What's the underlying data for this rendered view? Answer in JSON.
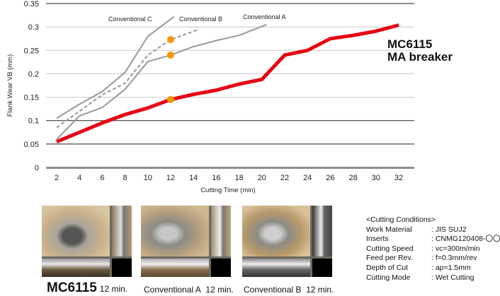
{
  "chart_data": {
    "type": "line",
    "xlabel": "Cutting Time (min)",
    "ylabel": "Flank Wear VB (mm)",
    "xlim": [
      2,
      32
    ],
    "ylim": [
      0,
      0.35
    ],
    "x_ticks": [
      2,
      4,
      6,
      8,
      10,
      12,
      14,
      16,
      18,
      20,
      22,
      24,
      26,
      28,
      30,
      32
    ],
    "y_ticks": [
      "0",
      "0.05",
      "0.1",
      "0.15",
      "0.2",
      "0.25",
      "0.3",
      "0.35"
    ],
    "grid": true,
    "series": [
      {
        "name": "MC6115 MA breaker",
        "label_lines": [
          "MC6115",
          "MA breaker"
        ],
        "color": "#e60012",
        "style": "solid-thick",
        "x": [
          2,
          4,
          6,
          8,
          10,
          12,
          14,
          16,
          18,
          20,
          22,
          24,
          26,
          28,
          30,
          32
        ],
        "y": [
          0.055,
          0.075,
          0.095,
          0.113,
          0.127,
          0.145,
          0.156,
          0.165,
          0.178,
          0.188,
          0.24,
          0.25,
          0.275,
          0.282,
          0.291,
          0.304
        ]
      },
      {
        "name": "Conventional A",
        "color": "#999999",
        "style": "solid",
        "x": [
          2,
          4,
          6,
          8,
          10,
          12,
          14,
          16,
          18,
          20.4
        ],
        "y": [
          0.06,
          0.11,
          0.128,
          0.167,
          0.226,
          0.24,
          0.258,
          0.271,
          0.282,
          0.305
        ]
      },
      {
        "name": "Conventional B",
        "color": "#999999",
        "style": "dashed",
        "x": [
          2,
          4,
          6,
          8,
          10,
          12,
          14.5
        ],
        "y": [
          0.085,
          0.12,
          0.155,
          0.18,
          0.24,
          0.273,
          0.295
        ]
      },
      {
        "name": "Conventional C",
        "color": "#999999",
        "style": "solid",
        "x": [
          2,
          4,
          6,
          8,
          10,
          12.3
        ],
        "y": [
          0.105,
          0.135,
          0.162,
          0.203,
          0.28,
          0.322
        ]
      }
    ],
    "markers": [
      {
        "x": 12,
        "y": 0.145,
        "color": "#f39800"
      },
      {
        "x": 12,
        "y": 0.24,
        "color": "#f39800"
      },
      {
        "x": 12,
        "y": 0.273,
        "color": "#f39800"
      }
    ]
  },
  "photos": [
    {
      "title": "MC6115",
      "time": "12 min."
    },
    {
      "title": "Conventional A",
      "time": "12 min."
    },
    {
      "title": "Conventional B",
      "time": "12 min."
    }
  ],
  "conditions": {
    "heading": "<Cutting Conditions>",
    "rows": [
      {
        "key": "Work Material",
        "value": ": JIS SUJ2"
      },
      {
        "key": "Inserts",
        "value": ": CNMG120408-〇〇"
      },
      {
        "key": "Cutting Speed",
        "value": ": vc=300m/min"
      },
      {
        "key": "Feed per Rev.",
        "value": ": f=0.3mm/rev"
      },
      {
        "key": "Depth of Cut",
        "value": ": ap=1.5mm"
      },
      {
        "key": "Cutting Mode",
        "value": ": Wet Cutting"
      }
    ]
  }
}
